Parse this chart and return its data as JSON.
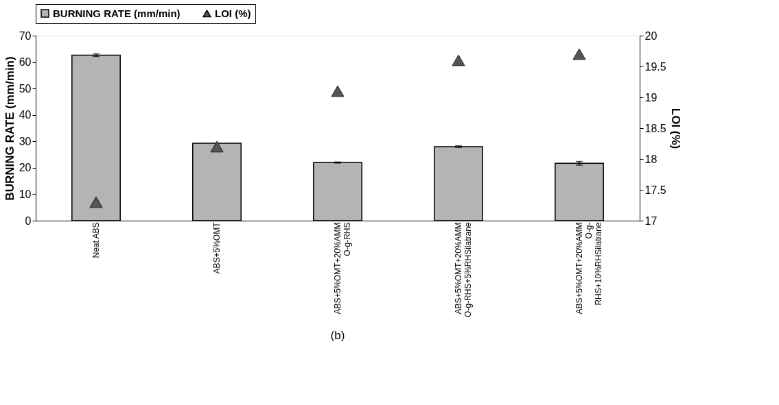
{
  "chart_data": {
    "type": "bar",
    "categories": [
      "Neat ABS",
      "ABS+5%OMT",
      "ABS+5%OMT+20%AMM\nO-g-RHS",
      "ABS+5%OMT+20%AMM\nO-g-RHS+5%RHSilatrane",
      "ABS+5%OMT+20%AMM\nO-g-\nRHS+10%RHSilatrane"
    ],
    "series": [
      {
        "name": "BURNING RATE (mm/min)",
        "type": "bar",
        "color": "#b4b4b4",
        "values": [
          62.6,
          29.3,
          22.0,
          28.0,
          21.7
        ],
        "errors": [
          0.5,
          null,
          0.2,
          0.3,
          0.7
        ]
      },
      {
        "name": "LOI (%)",
        "type": "scatter",
        "axis": "y2",
        "marker": "triangle",
        "color": "#555555",
        "values": [
          17.3,
          18.2,
          19.1,
          19.6,
          19.7
        ]
      }
    ],
    "ylabel": "BURNING RATE (mm/min)",
    "y2label": "LOI (%)",
    "ylim": [
      0,
      70
    ],
    "yticks": [
      0,
      10,
      20,
      30,
      40,
      50,
      60,
      70
    ],
    "y2lim": [
      17,
      20
    ],
    "y2ticks": [
      17,
      17.5,
      18,
      18.5,
      19,
      19.5,
      20
    ],
    "legend": "top",
    "grid": false,
    "annotations": [
      "(b)"
    ]
  }
}
